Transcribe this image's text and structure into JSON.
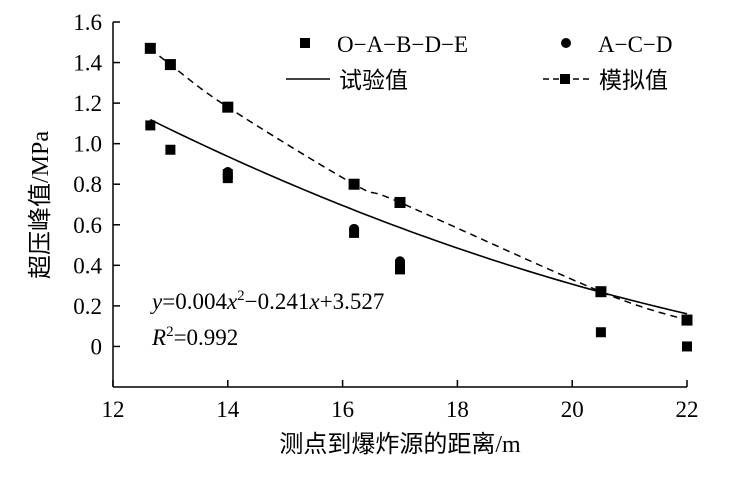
{
  "chart_data": {
    "type": "scatter",
    "xlabel": "测点到爆炸源的距离/m",
    "ylabel": "超压峰值/MPa",
    "xlim": [
      12,
      22
    ],
    "ylim": [
      -0.2,
      1.6
    ],
    "xticks": [
      "12",
      "14",
      "16",
      "18",
      "20",
      "22"
    ],
    "yticks": [
      "0",
      "0.2",
      "0.4",
      "0.6",
      "0.8",
      "1.0",
      "1.2",
      "1.4",
      "1.6"
    ],
    "grid": false,
    "legend_position": "top",
    "series": [
      {
        "name": "O−A−B−D−E",
        "kind": "scatter",
        "marker": "square",
        "x": [
          12.65,
          13.0,
          14.0,
          14.0,
          16.2,
          17.0,
          17.0,
          20.5,
          22.0
        ],
        "y": [
          1.09,
          0.97,
          0.83,
          0.85,
          0.56,
          0.38,
          0.4,
          0.07,
          0.0
        ]
      },
      {
        "name": "A−C−D",
        "kind": "scatter",
        "marker": "circle",
        "x": [
          14.0,
          16.2,
          17.0
        ],
        "y": [
          0.86,
          0.58,
          0.42
        ]
      },
      {
        "name": "试验值",
        "kind": "line",
        "style": "solid",
        "fit": {
          "a": 0.004,
          "b": -0.241,
          "c": 3.527,
          "xmin": 12.65,
          "xmax": 22.0
        }
      },
      {
        "name": "模拟值",
        "kind": "line",
        "style": "dashed",
        "marker": "square",
        "x": [
          12.65,
          13.0,
          14.0,
          16.2,
          17.0,
          20.5,
          22.0
        ],
        "y": [
          1.47,
          1.39,
          1.18,
          0.8,
          0.71,
          0.27,
          0.13
        ]
      }
    ],
    "annotations": {
      "equation": {
        "y": "y",
        "eq1": "=0.004",
        "x1": "x",
        "exp": "2",
        "eq2": "−0.241",
        "x2": "x",
        "eq3": "+3.527"
      },
      "r2": {
        "r": "R",
        "exp": "2",
        "value": "=0.992"
      }
    }
  }
}
